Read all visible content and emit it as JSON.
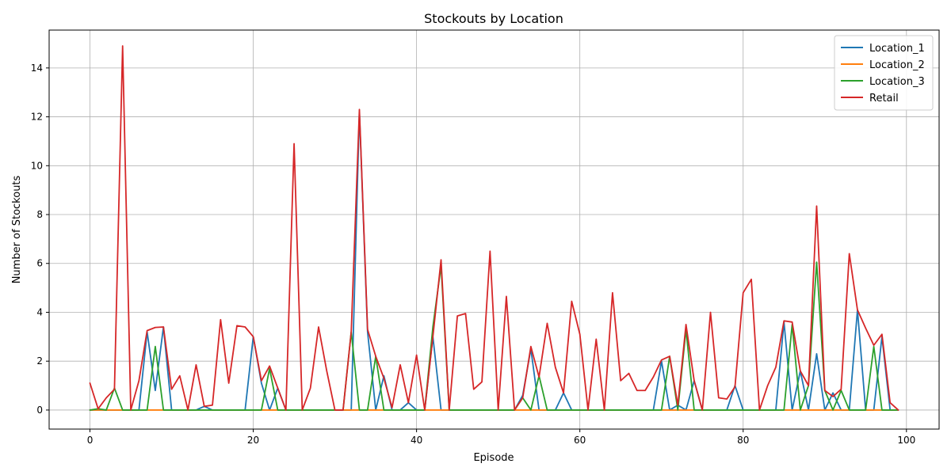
{
  "chart_data": {
    "type": "line",
    "title": "Stockouts by Location",
    "xlabel": "Episode",
    "ylabel": "Number of Stockouts",
    "xlim": [
      -5,
      104
    ],
    "ylim": [
      -0.78,
      15.55
    ],
    "xticks": [
      0,
      20,
      40,
      60,
      80,
      100
    ],
    "yticks": [
      0,
      2,
      4,
      6,
      8,
      10,
      12,
      14
    ],
    "grid": true,
    "legend_position": "top-right",
    "series": [
      {
        "name": "Location_1",
        "color": "#1f77b4",
        "values": [
          0,
          0,
          0,
          0,
          0,
          0,
          0,
          3.2,
          0.8,
          3.4,
          0,
          0,
          0,
          0,
          0.15,
          0,
          0,
          0,
          0,
          0,
          3.0,
          1.1,
          0,
          0.9,
          0,
          0,
          0,
          0,
          0,
          0,
          0,
          0,
          0,
          12.2,
          3.2,
          0,
          1.4,
          0,
          0,
          0.3,
          0,
          0,
          3.0,
          0,
          0,
          0,
          0,
          0,
          0,
          0,
          0,
          0,
          0,
          0.6,
          2.5,
          0,
          0,
          0,
          0.7,
          0,
          0,
          0,
          0,
          0,
          0,
          0,
          0,
          0,
          0,
          0,
          2.0,
          0,
          0.2,
          0,
          1.2,
          0,
          0,
          0,
          0,
          1.0,
          0,
          0,
          0,
          0,
          0,
          3.6,
          0,
          1.6,
          0,
          2.3,
          0,
          0.7,
          0,
          0,
          4.1,
          0,
          0,
          3.0,
          0,
          0
        ]
      },
      {
        "name": "Location_2",
        "color": "#ff7f0e",
        "values": [
          0,
          0,
          0,
          0,
          0,
          0,
          0,
          0,
          0,
          0,
          0,
          0,
          0,
          0,
          0,
          0,
          0,
          0,
          0,
          0,
          0,
          0,
          0,
          0,
          0,
          0,
          0,
          0,
          0,
          0,
          0,
          0,
          0,
          0,
          0,
          0,
          0,
          0,
          0,
          0,
          0,
          0,
          0,
          0,
          0,
          0,
          0,
          0,
          0,
          0,
          0,
          0,
          0,
          0,
          0,
          0,
          0,
          0,
          0,
          0,
          0,
          0,
          0,
          0,
          0,
          0,
          0,
          0,
          0,
          0,
          0,
          0,
          0,
          0,
          0,
          0,
          0,
          0,
          0,
          0,
          0,
          0,
          0,
          0,
          0,
          0,
          0,
          0,
          0,
          0,
          0,
          0,
          0,
          0,
          0,
          0,
          0,
          0,
          0,
          0
        ]
      },
      {
        "name": "Location_3",
        "color": "#2ca02c",
        "values": [
          0,
          0.05,
          0,
          0.9,
          0,
          0,
          0,
          0,
          2.6,
          0,
          0,
          0,
          0,
          0,
          0,
          0,
          0,
          0,
          0,
          0,
          0,
          0,
          1.7,
          0,
          0,
          0,
          0,
          0,
          0,
          0,
          0,
          0,
          3.2,
          0,
          0,
          2.2,
          0,
          0,
          0,
          0,
          0,
          0,
          3.4,
          5.9,
          0,
          0,
          0,
          0,
          0,
          0,
          0,
          0,
          0,
          0.5,
          0,
          1.4,
          0,
          0,
          0,
          0,
          0,
          0,
          0,
          0,
          0,
          0,
          0,
          0,
          0,
          0,
          0,
          2.2,
          0,
          3.3,
          0,
          0,
          0,
          0,
          0,
          0,
          0,
          0,
          0,
          0,
          0,
          0,
          3.5,
          0,
          1.0,
          6.05,
          0.8,
          0,
          0.8,
          0,
          0,
          0,
          2.6,
          0,
          0,
          0
        ]
      },
      {
        "name": "Retail",
        "color": "#d62728",
        "values": [
          1.1,
          0.05,
          0.5,
          0.85,
          14.9,
          0,
          1.2,
          3.25,
          3.38,
          3.4,
          0.85,
          1.4,
          0,
          1.85,
          0.15,
          0.2,
          3.7,
          1.1,
          3.45,
          3.4,
          3.0,
          1.2,
          1.8,
          0.9,
          0,
          10.9,
          0,
          0.9,
          3.4,
          1.6,
          0,
          0,
          3.2,
          12.3,
          3.3,
          2.2,
          1.3,
          0.1,
          1.85,
          0.3,
          2.25,
          0,
          3.0,
          6.15,
          0,
          3.85,
          3.95,
          0.85,
          1.15,
          6.5,
          0,
          4.65,
          0,
          0.5,
          2.6,
          1.35,
          3.55,
          1.75,
          0.7,
          4.45,
          3.1,
          0,
          2.9,
          0,
          4.8,
          1.2,
          1.5,
          0.8,
          0.8,
          1.35,
          2.05,
          2.2,
          0.2,
          3.5,
          1.2,
          0,
          4.0,
          0.5,
          0.45,
          0.95,
          4.8,
          5.35,
          0,
          1.0,
          1.75,
          3.65,
          3.6,
          1.6,
          1.0,
          8.35,
          0.8,
          0.55,
          0.85,
          6.4,
          4.1,
          3.35,
          2.65,
          3.1,
          0.3,
          0
        ]
      }
    ]
  }
}
